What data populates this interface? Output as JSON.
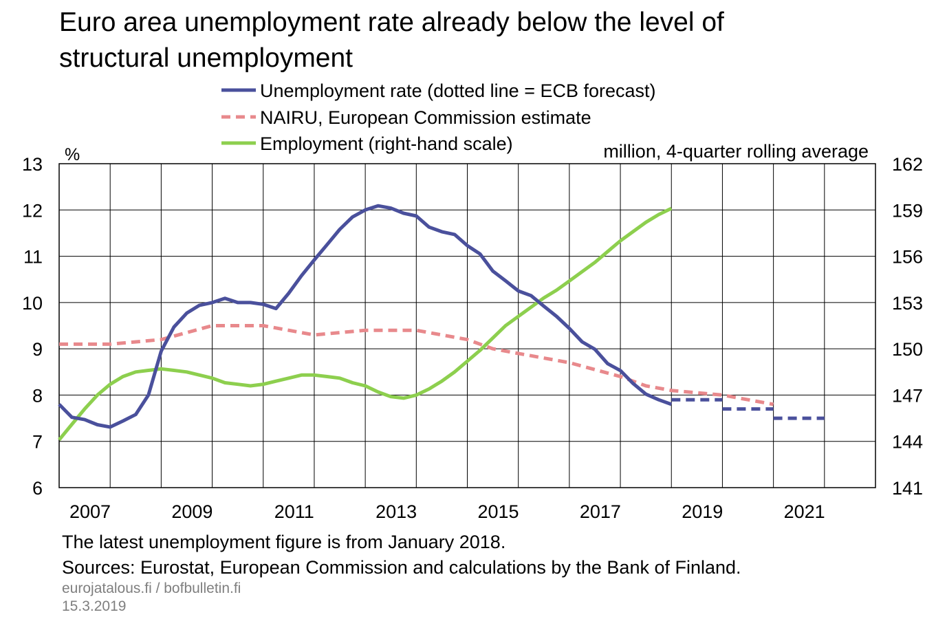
{
  "chart_data": {
    "type": "line",
    "title": "Euro area unemployment rate already below the level of structural unemployment",
    "title_lines": [
      "Euro area unemployment rate already below the level of",
      "structural unemployment"
    ],
    "left_axis": {
      "unit_label": "%",
      "ylim": [
        6,
        13
      ],
      "ticks": [
        "6",
        "7",
        "8",
        "9",
        "10",
        "11",
        "12",
        "13"
      ]
    },
    "right_axis": {
      "unit_label": "million, 4-quarter rolling average",
      "ylim": [
        141,
        162
      ],
      "ticks": [
        "141",
        "144",
        "147",
        "150",
        "153",
        "156",
        "159",
        "162"
      ]
    },
    "x_axis": {
      "xlim": [
        2007,
        2023
      ],
      "ticks": [
        "2007",
        "2009",
        "2011",
        "2013",
        "2015",
        "2017",
        "2019",
        "2021"
      ]
    },
    "grid": true,
    "legend_position": "top",
    "series": [
      {
        "name": "Unemployment rate (dotted line = ECB forecast)",
        "axis": "left",
        "color": "#4a509c",
        "style": "solid",
        "points": [
          [
            2007.0,
            7.8
          ],
          [
            2007.25,
            7.52
          ],
          [
            2007.5,
            7.47
          ],
          [
            2007.75,
            7.36
          ],
          [
            2008.0,
            7.31
          ],
          [
            2008.25,
            7.44
          ],
          [
            2008.5,
            7.58
          ],
          [
            2008.75,
            8.0
          ],
          [
            2009.0,
            8.95
          ],
          [
            2009.25,
            9.47
          ],
          [
            2009.5,
            9.77
          ],
          [
            2009.75,
            9.94
          ],
          [
            2010.0,
            10.0
          ],
          [
            2010.25,
            10.09
          ],
          [
            2010.5,
            10.0
          ],
          [
            2010.75,
            10.0
          ],
          [
            2011.0,
            9.96
          ],
          [
            2011.25,
            9.87
          ],
          [
            2011.5,
            10.2
          ],
          [
            2011.75,
            10.58
          ],
          [
            2012.0,
            10.92
          ],
          [
            2012.25,
            11.25
          ],
          [
            2012.5,
            11.58
          ],
          [
            2012.75,
            11.85
          ],
          [
            2013.0,
            12.0
          ],
          [
            2013.25,
            12.09
          ],
          [
            2013.5,
            12.04
          ],
          [
            2013.75,
            11.93
          ],
          [
            2014.0,
            11.87
          ],
          [
            2014.25,
            11.63
          ],
          [
            2014.5,
            11.53
          ],
          [
            2014.75,
            11.47
          ],
          [
            2015.0,
            11.23
          ],
          [
            2015.25,
            11.05
          ],
          [
            2015.5,
            10.68
          ],
          [
            2015.75,
            10.47
          ],
          [
            2016.0,
            10.25
          ],
          [
            2016.25,
            10.15
          ],
          [
            2016.5,
            9.92
          ],
          [
            2016.75,
            9.7
          ],
          [
            2017.0,
            9.44
          ],
          [
            2017.25,
            9.15
          ],
          [
            2017.5,
            8.99
          ],
          [
            2017.75,
            8.68
          ],
          [
            2018.0,
            8.53
          ],
          [
            2018.25,
            8.25
          ],
          [
            2018.5,
            8.02
          ],
          [
            2018.75,
            7.9
          ],
          [
            2019.0,
            7.8
          ]
        ]
      },
      {
        "name": "ECB forecast",
        "axis": "left",
        "color": "#4a509c",
        "style": "dashed",
        "segments": [
          [
            [
              2019.0,
              7.9
            ],
            [
              2020.0,
              7.9
            ]
          ],
          [
            [
              2020.0,
              7.7
            ],
            [
              2021.0,
              7.7
            ]
          ],
          [
            [
              2021.0,
              7.5
            ],
            [
              2022.0,
              7.5
            ]
          ]
        ]
      },
      {
        "name": "NAIRU, European Commission estimate",
        "axis": "left",
        "color": "#e8898c",
        "style": "dashed",
        "points": [
          [
            2007.0,
            9.1
          ],
          [
            2008.0,
            9.1
          ],
          [
            2009.0,
            9.2
          ],
          [
            2009.5,
            9.35
          ],
          [
            2010.0,
            9.5
          ],
          [
            2011.0,
            9.5
          ],
          [
            2011.5,
            9.4
          ],
          [
            2012.0,
            9.3
          ],
          [
            2013.0,
            9.4
          ],
          [
            2014.0,
            9.4
          ],
          [
            2015.0,
            9.2
          ],
          [
            2015.5,
            9.0
          ],
          [
            2016.0,
            8.9
          ],
          [
            2017.0,
            8.7
          ],
          [
            2018.0,
            8.4
          ],
          [
            2018.5,
            8.2
          ],
          [
            2019.0,
            8.1
          ],
          [
            2020.0,
            8.0
          ],
          [
            2021.0,
            7.8
          ]
        ]
      },
      {
        "name": "Employment (right-hand scale)",
        "axis": "right",
        "color": "#8dcf4e",
        "style": "solid",
        "points": [
          [
            2007.0,
            144.1
          ],
          [
            2007.25,
            145.1
          ],
          [
            2007.5,
            146.1
          ],
          [
            2007.75,
            147.0
          ],
          [
            2008.0,
            147.7
          ],
          [
            2008.25,
            148.2
          ],
          [
            2008.5,
            148.5
          ],
          [
            2008.75,
            148.6
          ],
          [
            2009.0,
            148.7
          ],
          [
            2009.25,
            148.6
          ],
          [
            2009.5,
            148.5
          ],
          [
            2009.75,
            148.3
          ],
          [
            2010.0,
            148.1
          ],
          [
            2010.25,
            147.8
          ],
          [
            2010.5,
            147.7
          ],
          [
            2010.75,
            147.6
          ],
          [
            2011.0,
            147.7
          ],
          [
            2011.25,
            147.9
          ],
          [
            2011.5,
            148.1
          ],
          [
            2011.75,
            148.3
          ],
          [
            2012.0,
            148.3
          ],
          [
            2012.25,
            148.2
          ],
          [
            2012.5,
            148.1
          ],
          [
            2012.75,
            147.8
          ],
          [
            2013.0,
            147.6
          ],
          [
            2013.25,
            147.2
          ],
          [
            2013.5,
            146.9
          ],
          [
            2013.75,
            146.8
          ],
          [
            2014.0,
            147.0
          ],
          [
            2014.25,
            147.4
          ],
          [
            2014.5,
            147.9
          ],
          [
            2014.75,
            148.5
          ],
          [
            2015.0,
            149.2
          ],
          [
            2015.25,
            149.9
          ],
          [
            2015.5,
            150.7
          ],
          [
            2015.75,
            151.5
          ],
          [
            2016.0,
            152.1
          ],
          [
            2016.25,
            152.7
          ],
          [
            2016.5,
            153.3
          ],
          [
            2016.75,
            153.8
          ],
          [
            2017.0,
            154.4
          ],
          [
            2017.25,
            155.0
          ],
          [
            2017.5,
            155.6
          ],
          [
            2017.75,
            156.3
          ],
          [
            2018.0,
            157.0
          ],
          [
            2018.25,
            157.6
          ],
          [
            2018.5,
            158.2
          ],
          [
            2018.75,
            158.7
          ],
          [
            2019.0,
            159.1
          ]
        ]
      }
    ],
    "notes": [
      "The latest unemployment figure is from January 2018.",
      "Sources: Eurostat, European Commission and calculations by the Bank of Finland."
    ],
    "footer": {
      "site": "eurojatalous.fi / bofbulletin.fi",
      "date": "15.3.2019"
    }
  }
}
